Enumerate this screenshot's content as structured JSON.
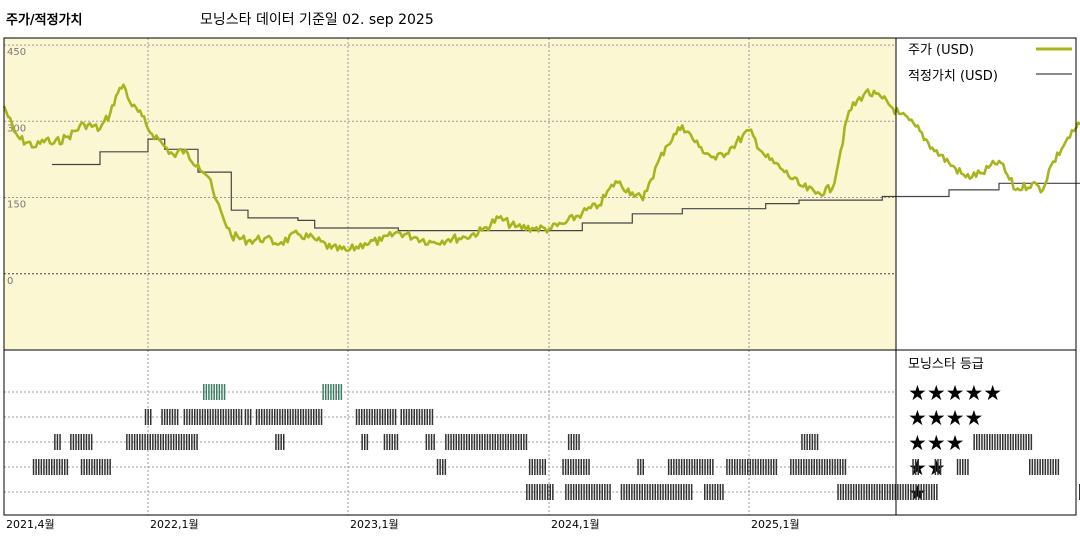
{
  "header": {
    "left_title": "주가/적정가치",
    "center_title": "모닝스타 데이터 기준일 02. sep 2025"
  },
  "legend": {
    "price_label": "주가 (USD)",
    "fair_value_label": "적정가치 (USD)",
    "rating_title": "모닝스타 등급"
  },
  "colors": {
    "price_line": "#a8b41e",
    "fair_value_line": "#444444",
    "plot_background": "#fbf7d3",
    "rating_bar": "#333333",
    "rating_5_bar": "#3e7c65"
  },
  "chart_data": {
    "type": "line",
    "xlabel": "",
    "ylabel": "",
    "ylim": [
      -150,
      460
    ],
    "y_ticks": [
      450,
      300,
      150,
      0
    ],
    "x_ticks": [
      {
        "label": "2021,4월",
        "date": "2021-04"
      },
      {
        "label": "2022,1월",
        "date": "2022-01"
      },
      {
        "label": "2023,1월",
        "date": "2023-01"
      },
      {
        "label": "2024,1월",
        "date": "2024-01"
      },
      {
        "label": "2025,1월",
        "date": "2025-01"
      }
    ],
    "series": [
      {
        "name": "주가 (USD)",
        "points": [
          [
            "2021-04",
            330
          ],
          [
            "2021-04-20",
            280
          ],
          [
            "2021-05",
            265
          ],
          [
            "2021-06",
            250
          ],
          [
            "2021-06-20",
            265
          ],
          [
            "2021-07",
            255
          ],
          [
            "2021-08",
            270
          ],
          [
            "2021-09",
            295
          ],
          [
            "2021-10",
            285
          ],
          [
            "2021-10-20",
            315
          ],
          [
            "2021-11",
            350
          ],
          [
            "2021-11-15",
            372
          ],
          [
            "2021-12",
            330
          ],
          [
            "2021-12-20",
            310
          ],
          [
            "2022-01",
            285
          ],
          [
            "2022-01-20",
            265
          ],
          [
            "2022-02",
            250
          ],
          [
            "2022-02-20",
            230
          ],
          [
            "2022-03",
            245
          ],
          [
            "2022-04",
            215
          ],
          [
            "2022-04-20",
            190
          ],
          [
            "2022-05",
            150
          ],
          [
            "2022-05-15",
            115
          ],
          [
            "2022-06",
            75
          ],
          [
            "2022-07",
            65
          ],
          [
            "2022-08",
            70
          ],
          [
            "2022-08-20",
            60
          ],
          [
            "2022-09",
            62
          ],
          [
            "2022-10",
            78
          ],
          [
            "2022-11",
            68
          ],
          [
            "2022-12",
            50
          ],
          [
            "2023-01",
            45
          ],
          [
            "2023-02",
            60
          ],
          [
            "2023-03",
            65
          ],
          [
            "2023-04",
            82
          ],
          [
            "2023-05",
            72
          ],
          [
            "2023-06",
            62
          ],
          [
            "2023-07",
            68
          ],
          [
            "2023-08",
            72
          ],
          [
            "2023-09",
            85
          ],
          [
            "2023-10",
            110
          ],
          [
            "2023-11",
            92
          ],
          [
            "2023-12",
            90
          ],
          [
            "2024-01",
            88
          ],
          [
            "2024-02",
            100
          ],
          [
            "2024-03",
            120
          ],
          [
            "2024-04",
            135
          ],
          [
            "2024-05",
            182
          ],
          [
            "2024-06",
            160
          ],
          [
            "2024-06-20",
            145
          ],
          [
            "2024-07",
            178
          ],
          [
            "2024-08",
            250
          ],
          [
            "2024-09",
            292
          ],
          [
            "2024-10",
            250
          ],
          [
            "2024-11",
            225
          ],
          [
            "2024-12",
            250
          ],
          [
            "2025-01",
            282
          ],
          [
            "2025-02",
            230
          ],
          [
            "2025-03",
            205
          ],
          [
            "2025-04",
            175
          ],
          [
            "2025-05",
            158
          ],
          [
            "2025-06",
            168
          ],
          [
            "2025-07",
            320
          ],
          [
            "2025-08",
            358
          ],
          [
            "2025-09",
            345
          ],
          [
            "2025-10",
            315
          ],
          [
            "2025-11",
            290
          ],
          [
            "2025-12",
            248
          ],
          [
            "2026-01",
            218
          ],
          [
            "2026-02",
            190
          ],
          [
            "2026-03",
            198
          ],
          [
            "2026-04",
            222
          ],
          [
            "2026-05",
            165
          ],
          [
            "2026-06",
            178
          ],
          [
            "2026-06-20",
            165
          ],
          [
            "2026-07",
            205
          ],
          [
            "2026-08",
            260
          ],
          [
            "2026-09",
            300
          ],
          [
            "2026-09-20",
            375
          ],
          [
            "2026-10",
            412
          ],
          [
            "2026-10-15",
            388
          ],
          [
            "2026-11",
            338
          ],
          [
            "2026-11-15",
            300
          ],
          [
            "2026-12",
            302
          ]
        ]
      },
      {
        "name": "적정가치 (USD)",
        "steps": [
          [
            "2021-07",
            215
          ],
          [
            "2021-10",
            240
          ],
          [
            "2022-01",
            265
          ],
          [
            "2022-02",
            245
          ],
          [
            "2022-04",
            200
          ],
          [
            "2022-06",
            125
          ],
          [
            "2022-07",
            110
          ],
          [
            "2022-10",
            105
          ],
          [
            "2022-11",
            90
          ],
          [
            "2023-04",
            85
          ],
          [
            "2024-01",
            85
          ],
          [
            "2024-03",
            100
          ],
          [
            "2024-06",
            118
          ],
          [
            "2024-09",
            128
          ],
          [
            "2025-01",
            128
          ],
          [
            "2025-02",
            138
          ],
          [
            "2025-04",
            145
          ],
          [
            "2025-09",
            152
          ],
          [
            "2026-01",
            165
          ],
          [
            "2026-04",
            178
          ],
          [
            "2026-09",
            215
          ],
          [
            "2026-12",
            215
          ]
        ]
      }
    ],
    "rating_chart": {
      "rows": [
        {
          "label": "★★★★★",
          "stars": 5
        },
        {
          "label": "★★★★",
          "stars": 4
        },
        {
          "label": "★★★",
          "stars": 3
        },
        {
          "label": "★★",
          "stars": 2
        },
        {
          "label": "★",
          "stars": 1
        }
      ],
      "spans": [
        {
          "stars": 5,
          "from": "2022-04-10",
          "to": "2022-05-20"
        },
        {
          "stars": 5,
          "from": "2022-11-15",
          "to": "2022-12-20"
        },
        {
          "stars": 4,
          "from": "2021-12-25",
          "to": "2022-01-05"
        },
        {
          "stars": 4,
          "from": "2022-01-25",
          "to": "2022-02-25"
        },
        {
          "stars": 4,
          "from": "2022-03-05",
          "to": "2022-06-20"
        },
        {
          "stars": 4,
          "from": "2022-06-25",
          "to": "2022-07-05"
        },
        {
          "stars": 4,
          "from": "2022-07-15",
          "to": "2022-11-15"
        },
        {
          "stars": 4,
          "from": "2023-01-15",
          "to": "2023-03-25"
        },
        {
          "stars": 4,
          "from": "2023-04-05",
          "to": "2023-06-05"
        },
        {
          "stars": 3,
          "from": "2021-07-05",
          "to": "2021-07-15"
        },
        {
          "stars": 3,
          "from": "2021-08-05",
          "to": "2021-09-15"
        },
        {
          "stars": 3,
          "from": "2021-11-20",
          "to": "2022-03-30"
        },
        {
          "stars": 3,
          "from": "2022-08-20",
          "to": "2022-09-05"
        },
        {
          "stars": 3,
          "from": "2023-01-25",
          "to": "2023-02-05"
        },
        {
          "stars": 3,
          "from": "2023-03-05",
          "to": "2023-03-30"
        },
        {
          "stars": 3,
          "from": "2023-05-20",
          "to": "2023-06-05"
        },
        {
          "stars": 3,
          "from": "2023-06-25",
          "to": "2023-11-20"
        },
        {
          "stars": 3,
          "from": "2024-02-05",
          "to": "2024-02-25"
        },
        {
          "stars": 3,
          "from": "2025-04-05",
          "to": "2025-05-05"
        },
        {
          "stars": 3,
          "from": "2026-02-15",
          "to": "2026-05-30"
        },
        {
          "stars": 2,
          "from": "2021-05-25",
          "to": "2021-07-30"
        },
        {
          "stars": 2,
          "from": "2021-08-25",
          "to": "2021-10-20"
        },
        {
          "stars": 2,
          "from": "2023-06-10",
          "to": "2023-06-25"
        },
        {
          "stars": 2,
          "from": "2023-11-25",
          "to": "2023-12-25"
        },
        {
          "stars": 2,
          "from": "2024-01-25",
          "to": "2024-03-15"
        },
        {
          "stars": 2,
          "from": "2024-06-10",
          "to": "2024-06-20"
        },
        {
          "stars": 2,
          "from": "2024-08-05",
          "to": "2024-10-25"
        },
        {
          "stars": 2,
          "from": "2024-11-20",
          "to": "2025-02-20"
        },
        {
          "stars": 2,
          "from": "2025-03-15",
          "to": "2025-06-25"
        },
        {
          "stars": 2,
          "from": "2025-10-25",
          "to": "2025-11-05"
        },
        {
          "stars": 2,
          "from": "2025-12-05",
          "to": "2025-12-15"
        },
        {
          "stars": 2,
          "from": "2026-01-15",
          "to": "2026-02-05"
        },
        {
          "stars": 2,
          "from": "2026-05-25",
          "to": "2026-07-20"
        },
        {
          "stars": 2,
          "from": "2026-09-25",
          "to": "2026-12-20"
        },
        {
          "stars": 1,
          "from": "2023-11-20",
          "to": "2024-01-10"
        },
        {
          "stars": 1,
          "from": "2024-01-30",
          "to": "2024-04-20"
        },
        {
          "stars": 1,
          "from": "2024-05-10",
          "to": "2024-09-20"
        },
        {
          "stars": 1,
          "from": "2024-10-10",
          "to": "2024-11-15"
        },
        {
          "stars": 1,
          "from": "2025-06-10",
          "to": "2025-12-10"
        },
        {
          "stars": 1,
          "from": "2026-08-25",
          "to": "2026-12-10"
        }
      ]
    }
  }
}
